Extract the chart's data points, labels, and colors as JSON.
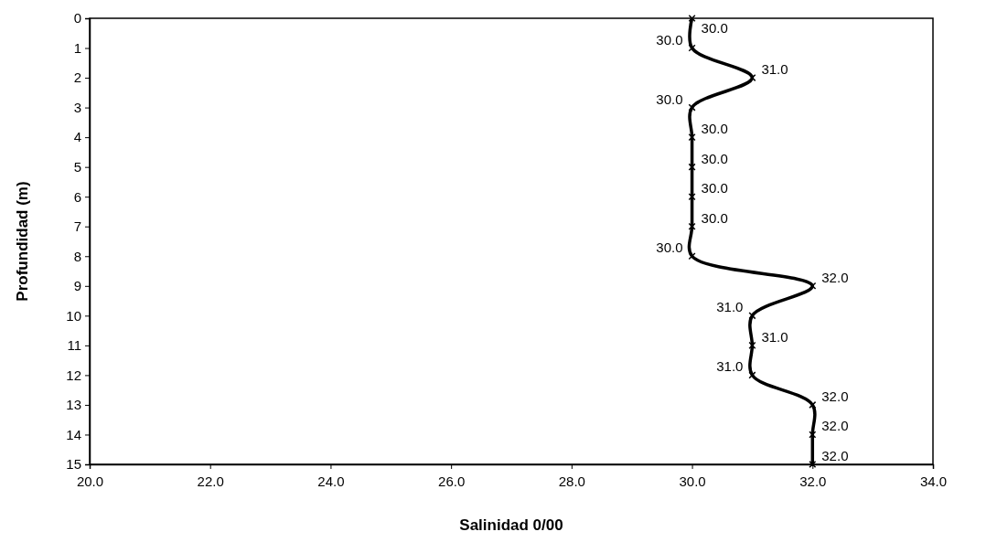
{
  "chart_data": {
    "type": "line",
    "orientation": "horizontal",
    "xlabel": "Salinidad 0/00",
    "ylabel": "Profundidad (m)",
    "categories": [
      "0",
      "1",
      "2",
      "3",
      "4",
      "5",
      "6",
      "7",
      "8",
      "9",
      "10",
      "11",
      "12",
      "13",
      "14",
      "15"
    ],
    "series": [
      {
        "color": "#000000",
        "values": [
          30,
          30,
          31,
          30,
          30,
          30,
          30,
          30,
          30,
          32,
          31,
          31,
          31,
          32,
          32,
          32
        ],
        "value_labels": [
          "30.0",
          "30.0",
          "31.0",
          "30.0",
          "30.0",
          "30.0",
          "30.0",
          "30.0",
          "30.0",
          "32.0",
          "31.0",
          "31.0",
          "31.0",
          "32.0",
          "32.0",
          "32.0"
        ]
      }
    ],
    "xlim": [
      20,
      34
    ],
    "xticks": [
      {
        "value": 20,
        "label": "20.0"
      },
      {
        "value": 22,
        "label": "22.0"
      },
      {
        "value": 24,
        "label": "24.0"
      },
      {
        "value": 26,
        "label": "26.0"
      },
      {
        "value": 28,
        "label": "28.0"
      },
      {
        "value": 30,
        "label": "30.0"
      },
      {
        "value": 32,
        "label": "32.0"
      },
      {
        "value": 34,
        "label": "34.0"
      }
    ],
    "grid": false,
    "marker": "cross",
    "line_style": "solid"
  }
}
